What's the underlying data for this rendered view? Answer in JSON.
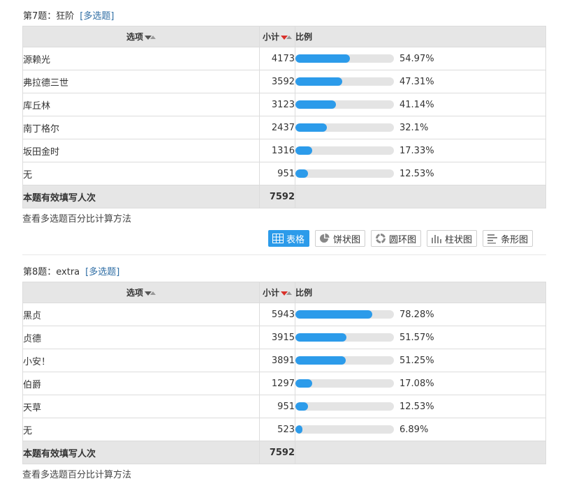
{
  "questions": [
    {
      "title": "第7题：狂阶",
      "tag": "[多选题]",
      "headers": {
        "option": "选项",
        "count": "小计",
        "ratio": "比例"
      },
      "rows": [
        {
          "option": "源赖光",
          "count": "4173",
          "percent": "54.97%",
          "fraction": 0.5497
        },
        {
          "option": "弗拉德三世",
          "count": "3592",
          "percent": "47.31%",
          "fraction": 0.4731
        },
        {
          "option": "库丘林",
          "count": "3123",
          "percent": "41.14%",
          "fraction": 0.4114
        },
        {
          "option": "南丁格尔",
          "count": "2437",
          "percent": "32.1%",
          "fraction": 0.321
        },
        {
          "option": "坂田金时",
          "count": "1316",
          "percent": "17.33%",
          "fraction": 0.1733
        },
        {
          "option": "无",
          "count": "951",
          "percent": "12.53%",
          "fraction": 0.1253
        }
      ],
      "total_label": "本题有效填写人次",
      "total_value": "7592",
      "calc_link": "查看多选题百分比计算方法"
    },
    {
      "title": "第8题：extra",
      "tag": "[多选题]",
      "headers": {
        "option": "选项",
        "count": "小计",
        "ratio": "比例"
      },
      "rows": [
        {
          "option": "黑贞",
          "count": "5943",
          "percent": "78.28%",
          "fraction": 0.7828
        },
        {
          "option": "贞德",
          "count": "3915",
          "percent": "51.57%",
          "fraction": 0.5157
        },
        {
          "option": "小安！",
          "count": "3891",
          "percent": "51.25%",
          "fraction": 0.5125
        },
        {
          "option": "伯爵",
          "count": "1297",
          "percent": "17.08%",
          "fraction": 0.1708
        },
        {
          "option": "天草",
          "count": "951",
          "percent": "12.53%",
          "fraction": 0.1253
        },
        {
          "option": "无",
          "count": "523",
          "percent": "6.89%",
          "fraction": 0.0689
        }
      ],
      "total_label": "本题有效填写人次",
      "total_value": "7592",
      "calc_link": "查看多选题百分比计算方法"
    }
  ],
  "view_buttons": [
    {
      "label": "表格",
      "icon": "table-icon",
      "active": true
    },
    {
      "label": "饼状图",
      "icon": "pie-chart-icon",
      "active": false
    },
    {
      "label": "圆环图",
      "icon": "donut-chart-icon",
      "active": false
    },
    {
      "label": "柱状图",
      "icon": "column-chart-icon",
      "active": false
    },
    {
      "label": "条形图",
      "icon": "bar-chart-icon",
      "active": false
    }
  ],
  "colors": {
    "accent": "#2c9bea",
    "bar_track": "#e4e4e4",
    "header_bg": "#e6e6e6",
    "tag": "#2e6da4",
    "sort_active": "#d9312b"
  }
}
